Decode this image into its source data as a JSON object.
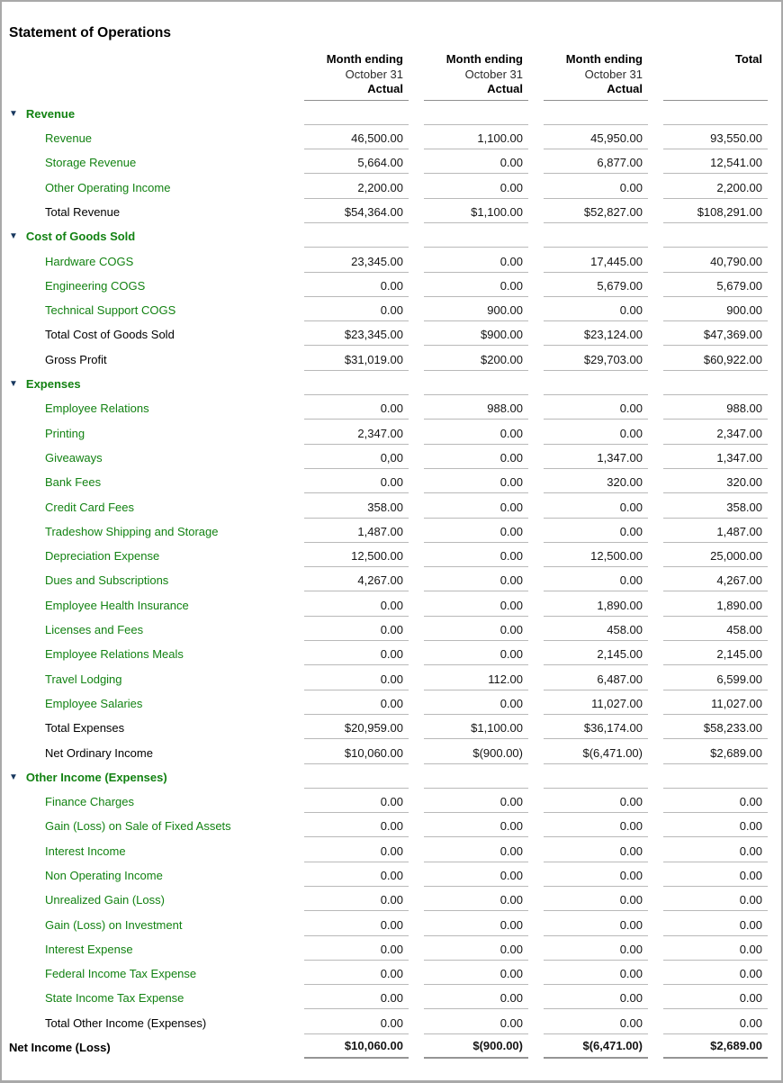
{
  "report": {
    "title": "Statement of Operations",
    "colors": {
      "link_green": "#128212",
      "triangle_navy": "#17375e",
      "rule_gray": "#b9b9b9",
      "header_rule_gray": "#8f8f8f",
      "grand_rule_gray": "#949494"
    },
    "columns": [
      {
        "line1": "Month ending",
        "line2": "October 31",
        "line3": "Actual"
      },
      {
        "line1": "Month ending",
        "line2": "October 31",
        "line3": "Actual"
      },
      {
        "line1": "Month ending",
        "line2": "October 31",
        "line3": "Actual"
      },
      {
        "line1": "",
        "line2": "",
        "line3": "Total"
      }
    ],
    "rows": [
      {
        "type": "section",
        "label": "Revenue",
        "values": [
          "",
          "",
          "",
          ""
        ]
      },
      {
        "type": "item",
        "label": "Revenue",
        "values": [
          "46,500.00",
          "1,100.00",
          "45,950.00",
          "93,550.00"
        ]
      },
      {
        "type": "item",
        "label": "Storage Revenue",
        "values": [
          "5,664.00",
          "0.00",
          "6,877.00",
          "12,541.00"
        ]
      },
      {
        "type": "item",
        "label": "Other Operating Income",
        "values": [
          "2,200.00",
          "0.00",
          "0.00",
          "2,200.00"
        ]
      },
      {
        "type": "total",
        "label": "Total Revenue",
        "values": [
          "$54,364.00",
          "$1,100.00",
          "$52,827.00",
          "$108,291.00"
        ]
      },
      {
        "type": "section",
        "label": "Cost of Goods Sold",
        "values": [
          "",
          "",
          "",
          ""
        ]
      },
      {
        "type": "item",
        "label": "Hardware COGS",
        "values": [
          "23,345.00",
          "0.00",
          "17,445.00",
          "40,790.00"
        ]
      },
      {
        "type": "item",
        "label": "Engineering COGS",
        "values": [
          "0.00",
          "0.00",
          "5,679.00",
          "5,679.00"
        ]
      },
      {
        "type": "item",
        "label": "Technical Support COGS",
        "values": [
          "0.00",
          "900.00",
          "0.00",
          "900.00"
        ]
      },
      {
        "type": "total",
        "label": "Total Cost of Goods Sold",
        "values": [
          "$23,345.00",
          "$900.00",
          "$23,124.00",
          "$47,369.00"
        ]
      },
      {
        "type": "total",
        "label": "Gross Profit",
        "values": [
          "$31,019.00",
          "$200.00",
          "$29,703.00",
          "$60,922.00"
        ]
      },
      {
        "type": "section",
        "label": "Expenses",
        "values": [
          "",
          "",
          "",
          ""
        ]
      },
      {
        "type": "item",
        "label": "Employee Relations",
        "values": [
          "0.00",
          "988.00",
          "0.00",
          "988.00"
        ]
      },
      {
        "type": "item",
        "label": "Printing",
        "values": [
          "2,347.00",
          "0.00",
          "0.00",
          "2,347.00"
        ]
      },
      {
        "type": "item",
        "label": "Giveaways",
        "values": [
          "0,00",
          "0.00",
          "1,347.00",
          "1,347.00"
        ]
      },
      {
        "type": "item",
        "label": "Bank Fees",
        "values": [
          "0.00",
          "0.00",
          "320.00",
          "320.00"
        ]
      },
      {
        "type": "item",
        "label": "Credit Card Fees",
        "values": [
          "358.00",
          "0.00",
          "0.00",
          "358.00"
        ]
      },
      {
        "type": "item",
        "label": "Tradeshow Shipping and Storage",
        "values": [
          "1,487.00",
          "0.00",
          "0.00",
          "1,487.00"
        ]
      },
      {
        "type": "item",
        "label": "Depreciation Expense",
        "values": [
          "12,500.00",
          "0.00",
          "12,500.00",
          "25,000.00"
        ]
      },
      {
        "type": "item",
        "label": "Dues and Subscriptions",
        "values": [
          "4,267.00",
          "0.00",
          "0.00",
          "4,267.00"
        ]
      },
      {
        "type": "item",
        "label": "Employee Health Insurance",
        "values": [
          "0.00",
          "0.00",
          "1,890.00",
          "1,890.00"
        ]
      },
      {
        "type": "item",
        "label": "Licenses and Fees",
        "values": [
          "0.00",
          "0.00",
          "458.00",
          "458.00"
        ]
      },
      {
        "type": "item",
        "label": "Employee Relations Meals",
        "values": [
          "0.00",
          "0.00",
          "2,145.00",
          "2,145.00"
        ]
      },
      {
        "type": "item",
        "label": "Travel Lodging",
        "values": [
          "0.00",
          "112.00",
          "6,487.00",
          "6,599.00"
        ]
      },
      {
        "type": "item",
        "label": "Employee Salaries",
        "values": [
          "0.00",
          "0.00",
          "11,027.00",
          "11,027.00"
        ]
      },
      {
        "type": "total",
        "label": "Total Expenses",
        "values": [
          "$20,959.00",
          "$1,100.00",
          "$36,174.00",
          "$58,233.00"
        ]
      },
      {
        "type": "total",
        "label": "Net Ordinary Income",
        "values": [
          "$10,060.00",
          "$(900.00)",
          "$(6,471.00)",
          "$2,689.00"
        ]
      },
      {
        "type": "section",
        "label": "Other Income (Expenses)",
        "values": [
          "",
          "",
          "",
          ""
        ]
      },
      {
        "type": "item",
        "label": "Finance Charges",
        "values": [
          "0.00",
          "0.00",
          "0.00",
          "0.00"
        ]
      },
      {
        "type": "item",
        "label": "Gain (Loss) on Sale of Fixed Assets",
        "values": [
          "0.00",
          "0.00",
          "0.00",
          "0.00"
        ]
      },
      {
        "type": "item",
        "label": "Interest Income",
        "values": [
          "0.00",
          "0.00",
          "0.00",
          "0.00"
        ]
      },
      {
        "type": "item",
        "label": "Non Operating Income",
        "values": [
          "0.00",
          "0.00",
          "0.00",
          "0.00"
        ]
      },
      {
        "type": "item",
        "label": "Unrealized Gain (Loss)",
        "values": [
          "0.00",
          "0.00",
          "0.00",
          "0.00"
        ]
      },
      {
        "type": "item",
        "label": "Gain (Loss) on Investment",
        "values": [
          "0.00",
          "0.00",
          "0.00",
          "0.00"
        ]
      },
      {
        "type": "item",
        "label": "Interest Expense",
        "values": [
          "0.00",
          "0.00",
          "0.00",
          "0.00"
        ]
      },
      {
        "type": "item",
        "label": "Federal Income Tax Expense",
        "values": [
          "0.00",
          "0.00",
          "0.00",
          "0.00"
        ]
      },
      {
        "type": "item",
        "label": "State Income Tax Expense",
        "values": [
          "0.00",
          "0.00",
          "0.00",
          "0.00"
        ]
      },
      {
        "type": "total",
        "label": "Total Other Income (Expenses)",
        "values": [
          "0.00",
          "0.00",
          "0.00",
          "0.00"
        ]
      },
      {
        "type": "grand_total",
        "label": "Net Income (Loss)",
        "values": [
          "$10,060.00",
          "$(900.00)",
          "$(6,471.00)",
          "$2,689.00"
        ]
      }
    ]
  }
}
